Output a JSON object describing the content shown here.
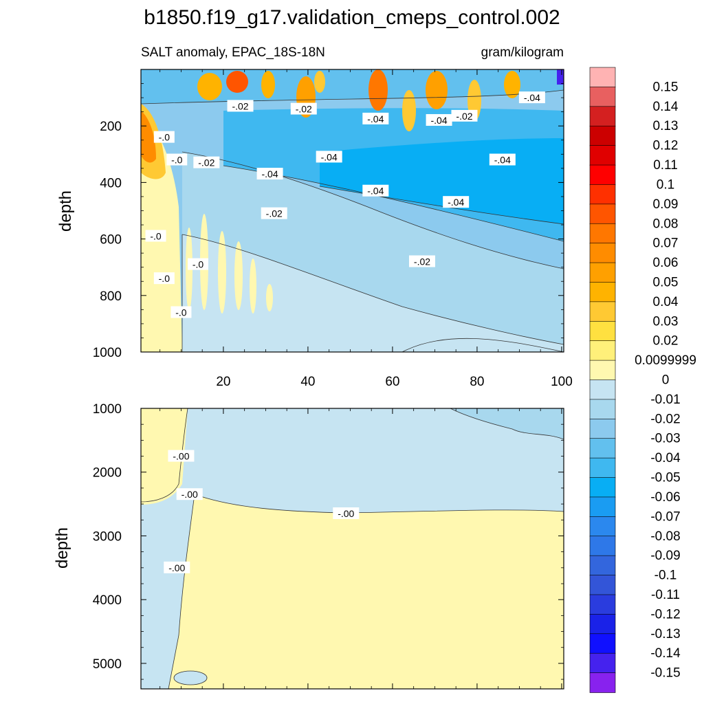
{
  "chart_data": {
    "type": "heatmap",
    "title": "b1850.f19_g17.validation_cmeps_control.002",
    "subtitle_left": "SALT anomaly, EPAC_18S-18N",
    "subtitle_right": "gram/kilogram",
    "ylabel": "depth",
    "x_tick_labels": [
      "20",
      "40",
      "60",
      "80",
      "100"
    ],
    "x_ticks": [
      20,
      40,
      60,
      80,
      100
    ],
    "xlim": [
      0.5,
      100.5
    ],
    "panels": [
      {
        "name": "upper",
        "ylim": [
          0,
          1000
        ],
        "y_ticks": [
          200,
          400,
          600,
          800,
          1000
        ],
        "y_tick_labels": [
          "200",
          "400",
          "600",
          "800",
          "1000"
        ],
        "contour_labels": [
          {
            "text": "-.02",
            "x": 24,
            "y": 130
          },
          {
            "text": "-.02",
            "x": 39,
            "y": 140
          },
          {
            "text": "-.04",
            "x": 56,
            "y": 175
          },
          {
            "text": "-.04",
            "x": 71,
            "y": 180
          },
          {
            "text": "-.02",
            "x": 77,
            "y": 165
          },
          {
            "text": "-.04",
            "x": 93,
            "y": 100
          },
          {
            "text": "-.0",
            "x": 6,
            "y": 240
          },
          {
            "text": "-.0",
            "x": 9,
            "y": 320
          },
          {
            "text": "-.02",
            "x": 16,
            "y": 330
          },
          {
            "text": "-.04",
            "x": 31,
            "y": 370
          },
          {
            "text": "-.04",
            "x": 45,
            "y": 310
          },
          {
            "text": "-.04",
            "x": 86,
            "y": 320
          },
          {
            "text": "-.04",
            "x": 56,
            "y": 430
          },
          {
            "text": "-.04",
            "x": 75,
            "y": 470
          },
          {
            "text": "-.02",
            "x": 32,
            "y": 510
          },
          {
            "text": "-.02",
            "x": 67,
            "y": 680
          },
          {
            "text": "-.0",
            "x": 4,
            "y": 590
          },
          {
            "text": "-.0",
            "x": 14,
            "y": 690
          },
          {
            "text": "-.0",
            "x": 6,
            "y": 740
          },
          {
            "text": "-.0",
            "x": 10,
            "y": 860
          }
        ]
      },
      {
        "name": "lower",
        "ylim": [
          1000,
          5400
        ],
        "y_ticks": [
          1000,
          2000,
          3000,
          4000,
          5000
        ],
        "y_tick_labels": [
          "1000",
          "2000",
          "3000",
          "4000",
          "5000"
        ],
        "contour_labels": [
          {
            "text": "-.00",
            "x": 10,
            "y": 1750
          },
          {
            "text": "-.00",
            "x": 12,
            "y": 2350
          },
          {
            "text": "-.00",
            "x": 49,
            "y": 2650
          },
          {
            "text": "-.00",
            "x": 9,
            "y": 3500
          }
        ]
      }
    ],
    "colorbar": {
      "labels": [
        "0.15",
        "0.14",
        "0.13",
        "0.12",
        "0.11",
        "0.1",
        "0.09",
        "0.08",
        "0.07",
        "0.06",
        "0.05",
        "0.04",
        "0.03",
        "0.02",
        "0.0099999",
        "0",
        "-0.01",
        "-0.02",
        "-0.03",
        "-0.04",
        "-0.05",
        "-0.06",
        "-0.07",
        "-0.08",
        "-0.09",
        "-0.1",
        "-0.11",
        "-0.12",
        "-0.13",
        "-0.14",
        "-0.15"
      ],
      "colors": [
        "#ffb3b3",
        "#e86060",
        "#d42020",
        "#cc0000",
        "#e00000",
        "#ff0000",
        "#ff3000",
        "#ff5500",
        "#ff7700",
        "#ff8c00",
        "#ffa000",
        "#ffb300",
        "#ffc933",
        "#ffe040",
        "#fff07a",
        "#fff8b0",
        "#c6e4f2",
        "#a8d8ee",
        "#8ccaee",
        "#62c0ee",
        "#3fb8f0",
        "#08aef4",
        "#1a9cf2",
        "#2b88ee",
        "#2e78e8",
        "#3366dd",
        "#3355d8",
        "#2a3cde",
        "#1a22e8",
        "#1010ff",
        "#4522ee",
        "#8822ee"
      ]
    },
    "colors": {
      "pos_light": "#fff8b0",
      "neg_light": "#c6e4f2",
      "neg_02": "#a8d8ee",
      "neg_03": "#8ccaee",
      "neg_04": "#62c0ee",
      "neg_05": "#3fb8f0",
      "warm": "#ffb300",
      "hot": "#ff5500"
    }
  }
}
